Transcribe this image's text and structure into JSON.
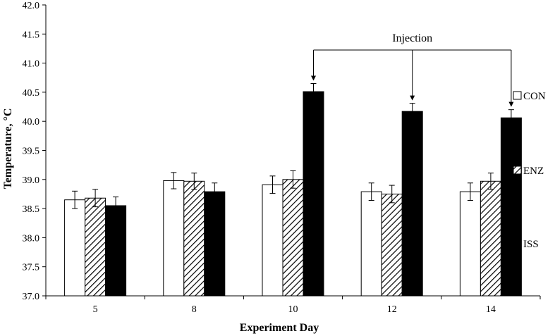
{
  "chart_data": {
    "type": "bar",
    "xlabel": "Experiment Day",
    "ylabel": "Temperature, °C",
    "ylim": [
      37.0,
      42.0
    ],
    "ytick_step": 0.5,
    "categories": [
      "5",
      "8",
      "10",
      "12",
      "14"
    ],
    "series": [
      {
        "name": "CON",
        "fill": "open",
        "values": [
          38.65,
          38.98,
          38.91,
          38.79,
          38.79
        ],
        "errors": [
          0.15,
          0.14,
          0.15,
          0.15,
          0.15
        ]
      },
      {
        "name": "ENZ",
        "fill": "hatched",
        "values": [
          38.68,
          38.97,
          39.0,
          38.75,
          38.97
        ],
        "errors": [
          0.15,
          0.14,
          0.15,
          0.15,
          0.14
        ]
      },
      {
        "name": "ISS",
        "fill": "solid",
        "values": [
          38.55,
          38.79,
          40.51,
          40.17,
          40.06
        ],
        "errors": [
          0.15,
          0.15,
          0.14,
          0.14,
          0.14
        ]
      }
    ],
    "annotation": {
      "text": "Injection",
      "target_categories": [
        "10",
        "12",
        "14"
      ],
      "target_series": "ISS"
    },
    "legend_position": "right",
    "grid": false
  }
}
